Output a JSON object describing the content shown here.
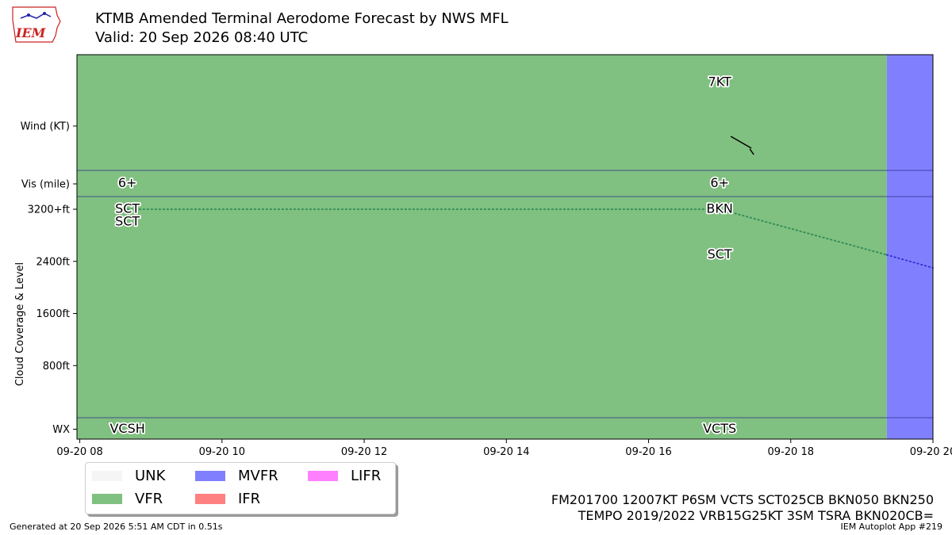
{
  "title": "KTMB Amended Terminal Aerodome Forecast by NWS MFL",
  "subtitle": "Valid: 20 Sep 2026 08:40 UTC",
  "logo_text": "IEM",
  "colors": {
    "UNK": "#f5f5f5",
    "VFR": "#80c080",
    "MVFR": "#8080ff",
    "IFR": "#ff8080",
    "LIFR": "#ff80ff",
    "vfr_line": "#2e8b57",
    "mvfr_line": "#3030d0"
  },
  "legend": [
    {
      "key": "UNK",
      "label": "UNK"
    },
    {
      "key": "MVFR",
      "label": "MVFR"
    },
    {
      "key": "LIFR",
      "label": "LIFR"
    },
    {
      "key": "VFR",
      "label": "VFR"
    },
    {
      "key": "IFR",
      "label": "IFR"
    }
  ],
  "taf_text": [
    "FM201700 12007KT P6SM VCTS SCT025CB BKN050 BKN250",
    "TEMPO 2019/2022 VRB15G25KT 3SM TSRA BKN020CB="
  ],
  "footer_left": "Generated at 20 Sep 2026 5:51 AM CDT in 0.51s",
  "footer_right": "IEM Autoplot App #219",
  "chart_data": {
    "type": "timeline",
    "ylabel": "Cloud Coverage & Level",
    "row_labels": {
      "wind": "Wind (KT)",
      "vis": "Vis (mile)",
      "wx": "WX"
    },
    "x_range": [
      7.96,
      20.0
    ],
    "x_ticks": [
      {
        "x": 8,
        "label": "09-20 08"
      },
      {
        "x": 10,
        "label": "09-20 10"
      },
      {
        "x": 12,
        "label": "09-20 12"
      },
      {
        "x": 14,
        "label": "09-20 14"
      },
      {
        "x": 16,
        "label": "09-20 16"
      },
      {
        "x": 18,
        "label": "09-20 18"
      },
      {
        "x": 20,
        "label": "09-20 20"
      }
    ],
    "cloud_ylim": [
      0,
      3200
    ],
    "cloud_ticks": [
      {
        "y": 800,
        "label": "800ft"
      },
      {
        "y": 1600,
        "label": "1600ft"
      },
      {
        "y": 2400,
        "label": "2400ft"
      },
      {
        "y": 3200,
        "label": "3200+ft"
      }
    ],
    "categories": [
      {
        "start": 7.96,
        "end": 19.35,
        "category": "VFR"
      },
      {
        "start": 19.35,
        "end": 20.0,
        "category": "MVFR"
      }
    ],
    "forecasts": [
      {
        "time": 8.67,
        "vis": "6+",
        "wx": "VCSH",
        "clouds": [
          {
            "cover": "SCT",
            "level": 3200
          },
          {
            "cover": "SCT",
            "level": 3200
          }
        ]
      },
      {
        "time": 17.0,
        "vis": "6+",
        "wx": "VCTS",
        "wind_label": "7KT",
        "wind_dir": 120,
        "wind_speed": 7,
        "clouds": [
          {
            "cover": "BKN",
            "level": 3200
          },
          {
            "cover": "SCT",
            "level": 2500
          }
        ]
      }
    ],
    "ceiling_line": [
      {
        "x": 8.67,
        "y": 3200
      },
      {
        "x": 17.0,
        "y": 3200
      },
      {
        "x": 19.35,
        "y": 2500
      },
      {
        "x": 20.0,
        "y": 2300
      }
    ]
  }
}
